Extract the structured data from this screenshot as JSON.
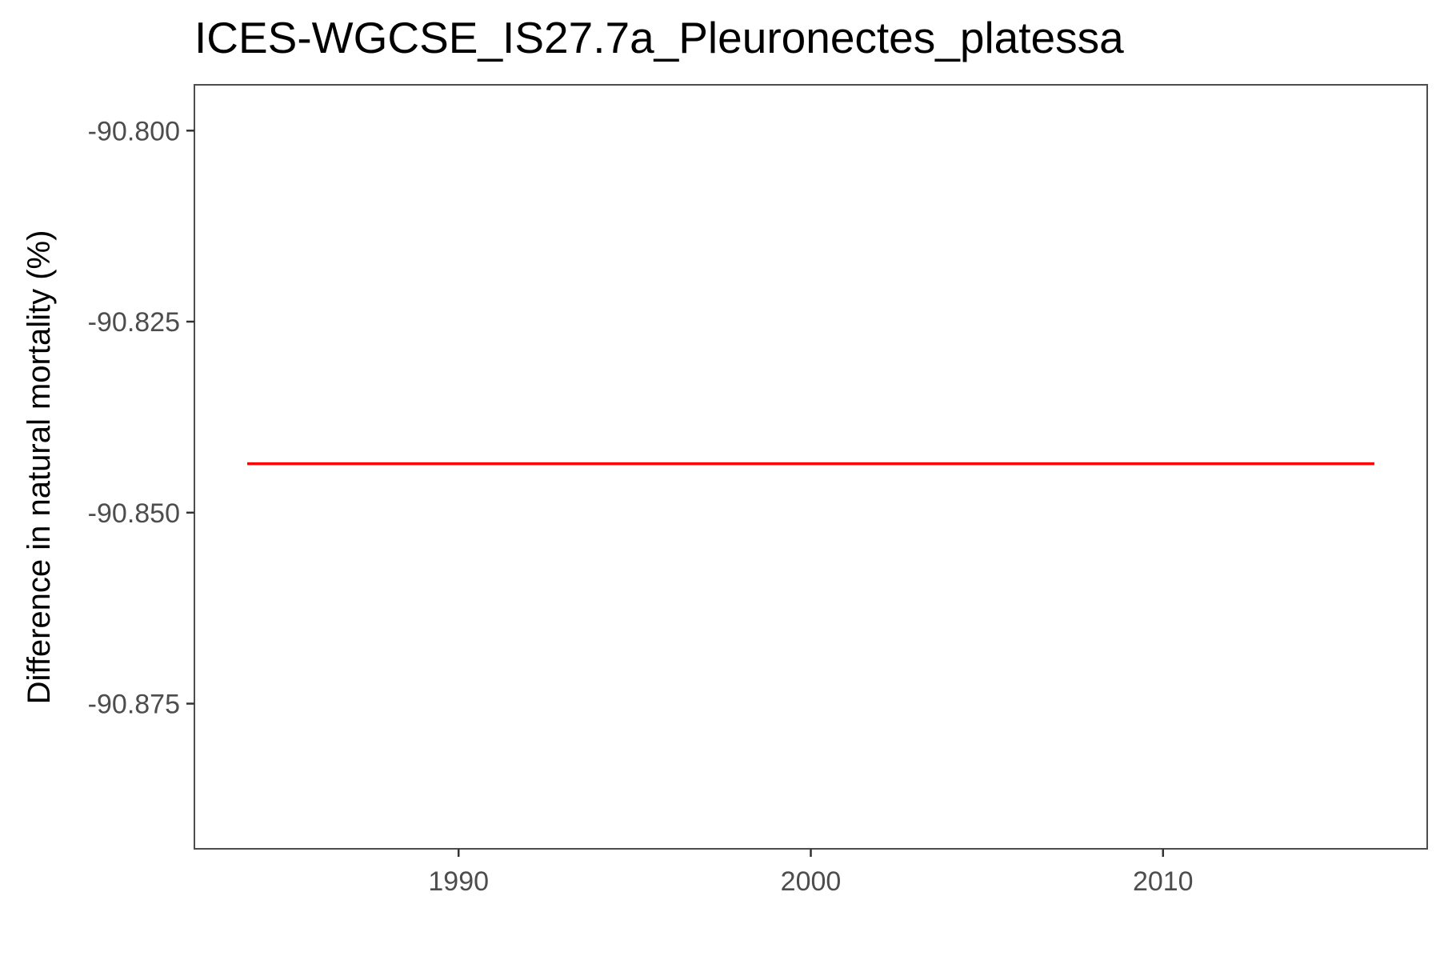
{
  "chart_data": {
    "type": "line",
    "title": "ICES-WGCSE_IS27.7a_Pleuronectes_platessa",
    "xlabel": "",
    "ylabel": "Difference in natural mortality (%)",
    "xlim": [
      1982.5,
      2017.5
    ],
    "ylim": [
      -90.894,
      -90.794
    ],
    "x_ticks": [
      1990,
      2000,
      2010
    ],
    "x_tick_labels": [
      "1990",
      "2000",
      "2010"
    ],
    "y_ticks": [
      -90.8,
      -90.825,
      -90.85,
      -90.875
    ],
    "y_tick_labels": [
      "-90.800",
      "-90.825",
      "-90.850",
      "-90.875"
    ],
    "grid": false,
    "series": [
      {
        "color": "#ff0000",
        "x": [
          1984,
          2016
        ],
        "y": [
          -90.8436,
          -90.8436
        ]
      }
    ]
  }
}
